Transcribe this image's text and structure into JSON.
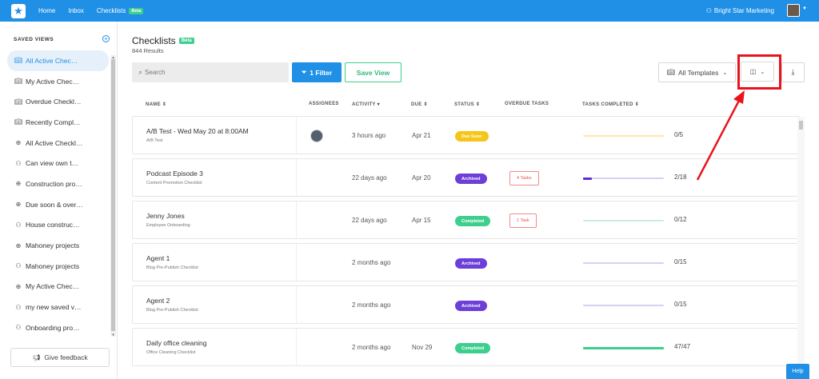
{
  "topnav": {
    "logo_icon": "star-logo-icon",
    "links": [
      {
        "label": "Home"
      },
      {
        "label": "Inbox"
      },
      {
        "label": "Checklists",
        "badge": "Beta"
      }
    ],
    "org_name": "Bright Star Marketing",
    "brand_color": "#1f90e6"
  },
  "sidebar": {
    "heading": "SAVED VIEWS",
    "add_icon": "plus-circle-icon",
    "items": [
      {
        "label": "All Active Chec…",
        "icon": "book-icon",
        "active": true
      },
      {
        "label": "My Active Chec…",
        "icon": "book-icon"
      },
      {
        "label": "Overdue Checkl…",
        "icon": "book-icon"
      },
      {
        "label": "Recently Compl…",
        "icon": "book-icon"
      },
      {
        "label": "All Active Checkl…",
        "icon": "globe-icon"
      },
      {
        "label": "Can view own t…",
        "icon": "users-icon"
      },
      {
        "label": "Construction pro…",
        "icon": "globe-icon"
      },
      {
        "label": "Due soon & over…",
        "icon": "globe-icon"
      },
      {
        "label": "House construc…",
        "icon": "users-icon"
      },
      {
        "label": "Mahoney projects",
        "icon": "globe-icon"
      },
      {
        "label": "Mahoney projects",
        "icon": "users-icon"
      },
      {
        "label": "My Active Chec…",
        "icon": "globe-icon"
      },
      {
        "label": "my new saved v…",
        "icon": "users-icon"
      },
      {
        "label": "Onboarding pro…",
        "icon": "users-icon"
      }
    ],
    "feedback_label": "Give feedback"
  },
  "main": {
    "title": "Checklists",
    "title_badge": "Beta",
    "results": "844 Results",
    "search_placeholder": "Search",
    "filter_label": "1 Filter",
    "save_view_label": "Save View",
    "templates_label": "All Templates"
  },
  "table": {
    "headers": {
      "name": "NAME",
      "assignees": "ASSIGNEES",
      "activity": "ACTIVITY",
      "due": "DUE",
      "status": "STATUS",
      "overdue": "OVERDUE TASKS",
      "completed": "TASKS COMPLETED"
    },
    "rows": [
      {
        "name": "A/B Test - Wed May 20 at 8:00AM",
        "template": "A/B Test",
        "has_assignee": true,
        "activity": "3 hours ago",
        "due": "Apr 21",
        "status": "Due Soon",
        "status_color": "#f5c518",
        "overdue": "",
        "done": 0,
        "total": 5,
        "tasks": "0/5",
        "bar_color": "#f5c518",
        "track_color": "#fbe9a8"
      },
      {
        "name": "Podcast Episode 3",
        "template": "Content Promotion Checklist",
        "has_assignee": false,
        "activity": "22 days ago",
        "due": "Apr 20",
        "status": "Archived",
        "status_color": "#6c3fd8",
        "overdue": "4 Tasks",
        "done": 2,
        "total": 18,
        "tasks": "2/18",
        "bar_color": "#5a30d0",
        "track_color": "#d8d0f0"
      },
      {
        "name": "Jenny Jones",
        "template": "Employee Onboarding",
        "has_assignee": false,
        "activity": "22 days ago",
        "due": "Apr 15",
        "status": "Completed",
        "status_color": "#3ecf8e",
        "overdue": "1 Task",
        "done": 0,
        "total": 12,
        "tasks": "0/12",
        "bar_color": "#3ecf8e",
        "track_color": "#c9eedc"
      },
      {
        "name": "Agent 1",
        "template": "Blog Pre-Publish Checklist",
        "has_assignee": false,
        "activity": "2 months ago",
        "due": "",
        "status": "Archived",
        "status_color": "#6c3fd8",
        "overdue": "",
        "done": 0,
        "total": 15,
        "tasks": "0/15",
        "bar_color": "#5a30d0",
        "track_color": "#d8d0f0"
      },
      {
        "name": "Agent 2",
        "template": "Blog Pre-Publish Checklist",
        "has_assignee": false,
        "activity": "2 months ago",
        "due": "",
        "status": "Archived",
        "status_color": "#6c3fd8",
        "overdue": "",
        "done": 0,
        "total": 15,
        "tasks": "0/15",
        "bar_color": "#5a30d0",
        "track_color": "#d8d0f0"
      },
      {
        "name": "Daily office cleaning",
        "template": "Office Cleaning Checklist",
        "has_assignee": false,
        "activity": "2 months ago",
        "due": "Nov 29",
        "status": "Completed",
        "status_color": "#3ecf8e",
        "overdue": "",
        "done": 47,
        "total": 47,
        "tasks": "47/47",
        "bar_color": "#3ecf8e",
        "track_color": "#c9eedc"
      }
    ]
  },
  "help_label": "Help",
  "annotation_color": "#e8141b"
}
